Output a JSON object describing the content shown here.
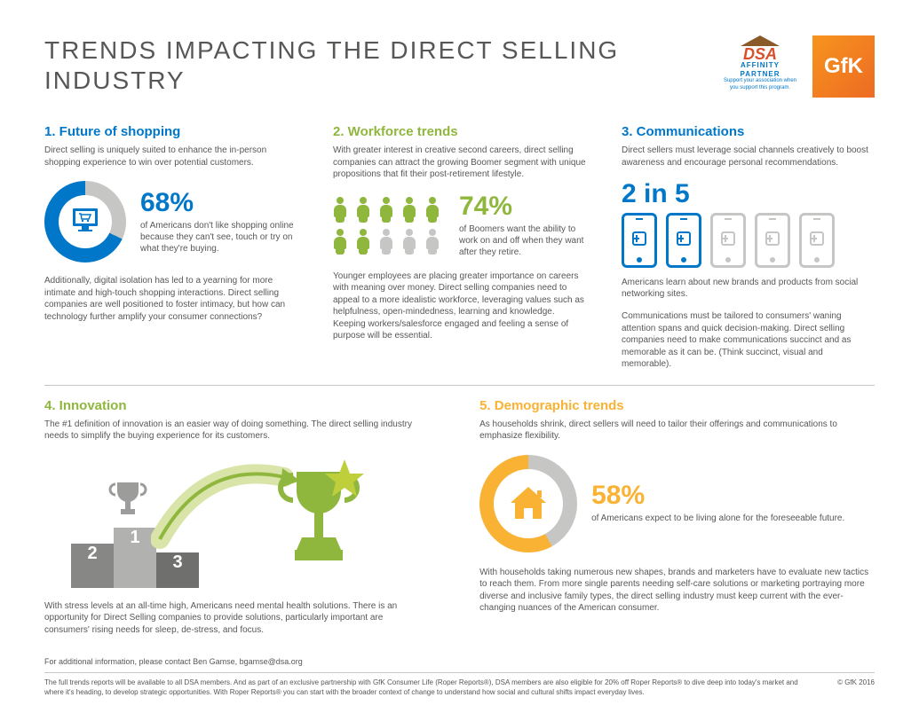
{
  "colors": {
    "blue": "#0077c8",
    "green": "#8fb73e",
    "orange": "#f9b233",
    "grey": "#c6c6c5",
    "text": "#575756"
  },
  "title": "Trends Impacting the Direct Selling Industry",
  "logos": {
    "dsa": {
      "main": "DSA",
      "sub": "AFFINITY PARTNER",
      "tag": "Support your association when you support this program."
    },
    "gfk": "GfK"
  },
  "s1": {
    "title": "1. Future of shopping",
    "intro": "Direct selling is uniquely suited to enhance the in-person shopping experience to win over potential customers.",
    "stat": "68%",
    "stat_desc": "of Americans don't like shopping online because they can't see, touch or try on what they're buying.",
    "donut_percent": 68,
    "body": "Additionally, digital isolation has led to a yearning for more intimate and high-touch shopping interactions. Direct selling companies are well positioned to foster intimacy, but how can technology further amplify your consumer connections?"
  },
  "s2": {
    "title": "2. Workforce trends",
    "intro": "With greater interest in creative second careers, direct selling companies can attract the growing Boomer segment with unique propositions that fit their post-retirement lifestyle.",
    "stat": "74%",
    "stat_desc": "of Boomers want the ability to work on and off when they want after they retire.",
    "people_on": 7,
    "people_total": 10,
    "body": "Younger employees are placing greater importance on careers with meaning over money. Direct selling companies need to appeal to a more idealistic workforce, leveraging values such as helpfulness, open-mindedness, learning and knowledge. Keeping workers/salesforce engaged and feeling a sense of purpose will be essential."
  },
  "s3": {
    "title": "3. Communications",
    "intro": "Direct sellers must leverage social channels creatively to boost awareness and encourage personal recommendations.",
    "stat": "2 in 5",
    "phones_on": 2,
    "phones_total": 5,
    "stat_desc": "Americans learn about new brands and products from social networking sites.",
    "body": "Communications must be tailored to consumers' waning attention spans and quick decision-making. Direct selling companies need to make communications succinct and as memorable as it can be. (Think succinct, visual and memorable)."
  },
  "s4": {
    "title": "4. Innovation",
    "intro": "The #1 definition of innovation is an easier way of doing something. The direct selling industry needs to simplify the buying experience for its customers.",
    "podium": [
      "2",
      "1",
      "3"
    ],
    "body": "With stress levels at an all-time high, Americans need mental health solutions. There is an opportunity for Direct Selling companies to provide solutions, particularly important are consumers' rising needs for sleep, de-stress, and focus."
  },
  "s5": {
    "title": "5. Demographic trends",
    "intro": "As households shrink, direct sellers will need to tailor their offerings and communications to emphasize flexibility.",
    "stat": "58%",
    "stat_desc": "of Americans expect to be living alone for the foreseeable future.",
    "donut_percent": 58,
    "body": "With households taking numerous new shapes, brands and marketers have to evaluate new tactics to reach them. From more single parents needing self-care solutions or marketing portraying more diverse and inclusive family types, the direct selling industry must keep current with the ever-changing nuances of the American consumer."
  },
  "footer": {
    "contact": "For additional information, please contact Ben Gamse, bgamse@dsa.org",
    "disclaimer": "The full trends reports will be available to all DSA members. And as part of an exclusive partnership with GfK Consumer Life (Roper Reports®), DSA members are also eligible for 20% off Roper Reports® to dive deep into today's market and where it's heading, to develop strategic opportunities. With Roper Reports® you can start with the broader context of change to understand how social and cultural shifts impact everyday lives.",
    "copyright": "© GfK 2016"
  }
}
